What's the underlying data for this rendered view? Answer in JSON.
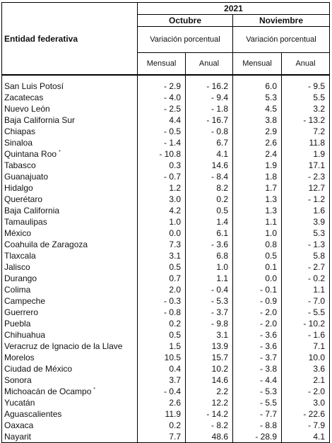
{
  "header": {
    "entity_label": "Entidad federativa",
    "year": "2021",
    "months": [
      "Octubre",
      "Noviembre"
    ],
    "variation_label": "Variación porcentual",
    "sub_labels": [
      "Mensual",
      "Anual"
    ]
  },
  "rows": [
    {
      "entity": "San Luis Potosí",
      "note": "",
      "oct_m": "- 2.9",
      "oct_a": "- 16.2",
      "nov_m": "6.0",
      "nov_a": "- 9.5"
    },
    {
      "entity": "Zacatecas",
      "note": "",
      "oct_m": "- 4.0",
      "oct_a": "- 9.4",
      "nov_m": "5.3",
      "nov_a": "5.5"
    },
    {
      "entity": "Nuevo León",
      "note": "",
      "oct_m": "- 2.5",
      "oct_a": "- 1.8",
      "nov_m": "4.5",
      "nov_a": "3.2"
    },
    {
      "entity": "Baja California Sur",
      "note": "",
      "oct_m": "4.4",
      "oct_a": "- 16.7",
      "nov_m": "3.8",
      "nov_a": "- 13.2"
    },
    {
      "entity": "Chiapas",
      "note": "",
      "oct_m": "- 0.5",
      "oct_a": "- 0.8",
      "nov_m": "2.9",
      "nov_a": "7.2"
    },
    {
      "entity": "Sinaloa",
      "note": "",
      "oct_m": "- 1.4",
      "oct_a": "6.7",
      "nov_m": "2.6",
      "nov_a": "11.8"
    },
    {
      "entity": "Quintana Roo",
      "note": "*",
      "oct_m": "- 10.8",
      "oct_a": "4.1",
      "nov_m": "2.4",
      "nov_a": "1.9"
    },
    {
      "entity": "Tabasco",
      "note": "",
      "oct_m": "0.3",
      "oct_a": "14.6",
      "nov_m": "1.9",
      "nov_a": "17.1"
    },
    {
      "entity": "Guanajuato",
      "note": "",
      "oct_m": "- 0.7",
      "oct_a": "- 8.4",
      "nov_m": "1.8",
      "nov_a": "- 2.3"
    },
    {
      "entity": "Hidalgo",
      "note": "",
      "oct_m": "1.2",
      "oct_a": "8.2",
      "nov_m": "1.7",
      "nov_a": "12.7"
    },
    {
      "entity": "Querétaro",
      "note": "",
      "oct_m": "3.0",
      "oct_a": "0.2",
      "nov_m": "1.3",
      "nov_a": "- 1.2"
    },
    {
      "entity": "Baja California",
      "note": "",
      "oct_m": "4.2",
      "oct_a": "0.5",
      "nov_m": "1.3",
      "nov_a": "1.6"
    },
    {
      "entity": "Tamaulipas",
      "note": "",
      "oct_m": "1.0",
      "oct_a": "1.4",
      "nov_m": "1.1",
      "nov_a": "3.9"
    },
    {
      "entity": "México",
      "note": "",
      "oct_m": "0.0",
      "oct_a": "6.1",
      "nov_m": "1.0",
      "nov_a": "5.3"
    },
    {
      "entity": "Coahuila de Zaragoza",
      "note": "",
      "oct_m": "7.3",
      "oct_a": "- 3.6",
      "nov_m": "0.8",
      "nov_a": "- 1.3"
    },
    {
      "entity": "Tlaxcala",
      "note": "",
      "oct_m": "3.1",
      "oct_a": "6.8",
      "nov_m": "0.5",
      "nov_a": "5.8"
    },
    {
      "entity": "Jalisco",
      "note": "",
      "oct_m": "0.5",
      "oct_a": "1.0",
      "nov_m": "0.1",
      "nov_a": "- 2.7"
    },
    {
      "entity": "Durango",
      "note": "",
      "oct_m": "0.7",
      "oct_a": "1.1",
      "nov_m": "0.0",
      "nov_a": "- 0.2"
    },
    {
      "entity": "Colima",
      "note": "",
      "oct_m": "2.0",
      "oct_a": "- 0.4",
      "nov_m": "- 0.1",
      "nov_a": "1.1"
    },
    {
      "entity": "Campeche",
      "note": "",
      "oct_m": "- 0.3",
      "oct_a": "- 5.3",
      "nov_m": "- 0.9",
      "nov_a": "- 7.0"
    },
    {
      "entity": "Guerrero",
      "note": "",
      "oct_m": "- 0.8",
      "oct_a": "- 3.7",
      "nov_m": "- 2.0",
      "nov_a": "- 5.5"
    },
    {
      "entity": "Puebla",
      "note": "",
      "oct_m": "0.2",
      "oct_a": "- 9.8",
      "nov_m": "- 2.0",
      "nov_a": "- 10.2"
    },
    {
      "entity": "Chihuahua",
      "note": "",
      "oct_m": "0.5",
      "oct_a": "3.1",
      "nov_m": "- 3.6",
      "nov_a": "- 1.6"
    },
    {
      "entity": "Veracruz de Ignacio de la Llave",
      "note": "",
      "oct_m": "1.5",
      "oct_a": "13.9",
      "nov_m": "- 3.6",
      "nov_a": "7.1"
    },
    {
      "entity": "Morelos",
      "note": "",
      "oct_m": "10.5",
      "oct_a": "15.7",
      "nov_m": "- 3.7",
      "nov_a": "10.0"
    },
    {
      "entity": "Ciudad de México",
      "note": "",
      "oct_m": "0.4",
      "oct_a": "10.2",
      "nov_m": "- 3.8",
      "nov_a": "3.6"
    },
    {
      "entity": "Sonora",
      "note": "",
      "oct_m": "3.7",
      "oct_a": "14.6",
      "nov_m": "- 4.4",
      "nov_a": "2.1"
    },
    {
      "entity": "Michoacán de Ocampo",
      "note": "*",
      "oct_m": "- 0.4",
      "oct_a": "2.2",
      "nov_m": "- 5.3",
      "nov_a": "- 2.0"
    },
    {
      "entity": "Yucatán",
      "note": "",
      "oct_m": "2.6",
      "oct_a": "12.2",
      "nov_m": "- 5.5",
      "nov_a": "3.0"
    },
    {
      "entity": "Aguascalientes",
      "note": "",
      "oct_m": "11.9",
      "oct_a": "- 14.2",
      "nov_m": "- 7.7",
      "nov_a": "- 22.6"
    },
    {
      "entity": "Oaxaca",
      "note": "",
      "oct_m": "0.2",
      "oct_a": "- 8.2",
      "nov_m": "- 8.8",
      "nov_a": "- 7.9"
    },
    {
      "entity": "Nayarit",
      "note": "",
      "oct_m": "7.7",
      "oct_a": "48.6",
      "nov_m": "- 28.9",
      "nov_a": "4.1"
    }
  ]
}
